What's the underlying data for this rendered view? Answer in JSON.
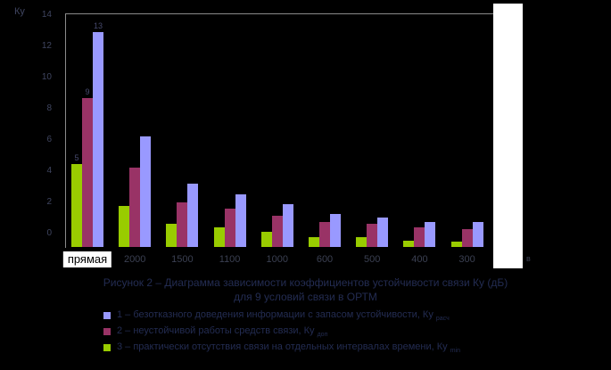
{
  "chart_data": {
    "type": "bar",
    "y_axis_title": "Ку",
    "y_ticks": [
      0,
      2,
      4,
      6,
      8,
      10,
      12,
      14
    ],
    "ylim": [
      0,
      14
    ],
    "grid": false,
    "legend_position": "bottom",
    "categories": [
      "прямая",
      "2000",
      "1500",
      "1100",
      "1000",
      "600",
      "500",
      "400",
      "300"
    ],
    "highlighted_category": "прямая",
    "series": [
      {
        "name": "1",
        "color": "#9999FF",
        "first_label": "13",
        "values": [
          13,
          6.7,
          3.8,
          3.2,
          2.6,
          2.0,
          1.8,
          1.5,
          1.5
        ]
      },
      {
        "name": "2",
        "color": "#993366",
        "first_label": "9",
        "values": [
          9,
          4.8,
          2.7,
          2.3,
          1.9,
          1.5,
          1.4,
          1.2,
          1.1
        ]
      },
      {
        "name": "3",
        "color": "#99CC00",
        "first_label": "5",
        "values": [
          5,
          2.5,
          1.4,
          1.2,
          0.9,
          0.6,
          0.6,
          0.4,
          0.35
        ]
      }
    ],
    "axis_note": "в"
  },
  "caption": {
    "line1": "Рисунок 2 – Диаграмма зависимости коэффициентов устойчивости связи Ку (дБ)",
    "line2": "для 9 условий связи в ОРТМ"
  },
  "legend": {
    "items": [
      {
        "color": "#9999FF",
        "text": "1 – безотказного доведения информации с запасом устойчивости, Ку ",
        "sub": "расч"
      },
      {
        "color": "#993366",
        "text": "2 – неустойчивой работы средств связи, Ку ",
        "sub": "доп"
      },
      {
        "color": "#99CC00",
        "text": "3 – практически отсутствия связи на отдельных интервалах времени, Ку ",
        "sub": "min"
      }
    ]
  }
}
